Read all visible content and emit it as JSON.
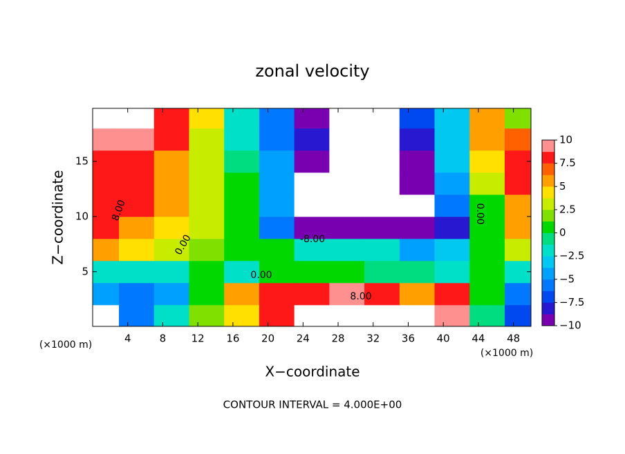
{
  "chart_data": {
    "type": "heatmap",
    "title": "zonal velocity",
    "x_label": "X−coordinate",
    "y_label": "Z−coordinate",
    "x_unit_left": "(×1000 m)",
    "x_unit_right": "(×1000 m)",
    "footnote": "CONTOUR INTERVAL = 4.000E+00",
    "x": [
      1,
      5,
      9,
      13,
      17,
      21,
      25,
      29,
      33,
      37,
      41,
      45,
      49
    ],
    "y": [
      1,
      3,
      5,
      7,
      9,
      11,
      13,
      15,
      17,
      19
    ],
    "z": [
      [
        -11,
        -6,
        -2,
        2,
        4,
        8,
        11,
        12,
        12,
        11,
        10,
        -1,
        -7
      ],
      [
        -5,
        -6,
        -4,
        0,
        6,
        7.5,
        8,
        10,
        8,
        6,
        8,
        1,
        -6
      ],
      [
        -2,
        -2.5,
        -2,
        0,
        -2,
        0.5,
        0,
        0,
        -1,
        -1,
        -2,
        0,
        -2.5
      ],
      [
        5,
        4,
        2.5,
        2,
        1,
        0,
        -1.5,
        -2.5,
        -2.5,
        -5,
        -3,
        0.5,
        3.5
      ],
      [
        8,
        6,
        4,
        2.5,
        0.5,
        -6,
        -9,
        -9,
        -9.5,
        -9,
        -8,
        0,
        5
      ],
      [
        8,
        7.5,
        5,
        3,
        0.5,
        -4,
        -11,
        -12,
        -11,
        -10.5,
        -6,
        1,
        6
      ],
      [
        8,
        8,
        6,
        3.5,
        0,
        -5,
        -11,
        -14,
        -13,
        -10,
        -4,
        3,
        7.5
      ],
      [
        8.5,
        8,
        6,
        3,
        -1,
        -5,
        -9,
        -13,
        -12,
        -9,
        -3,
        4,
        8
      ],
      [
        10,
        10,
        7.5,
        3,
        -2,
        -5.5,
        -8,
        -12,
        -12,
        -8,
        -3,
        5,
        7
      ],
      [
        11,
        12,
        8,
        4,
        -2,
        -6,
        -10,
        -13,
        -11,
        -7,
        -3,
        6,
        2
      ]
    ],
    "xlim": [
      0,
      50
    ],
    "ylim": [
      0.05,
      19.8
    ],
    "xticks": [
      4,
      8,
      12,
      16,
      20,
      24,
      28,
      32,
      36,
      40,
      44,
      48
    ],
    "yticks": [
      5,
      10,
      15
    ],
    "clim": [
      -10,
      10
    ],
    "colors": [
      "#7800b0",
      "#2818d0",
      "#0048f0",
      "#0078ff",
      "#00a0ff",
      "#00c8f0",
      "#00e0c8",
      "#00dc80",
      "#00d800",
      "#80e000",
      "#c8ec00",
      "#ffe000",
      "#ffa000",
      "#ff6000",
      "#ff1818",
      "#ff9090"
    ],
    "out_of_range_color": "#ffffff",
    "cticks": [
      {
        "value": -10,
        "label": "−10"
      },
      {
        "value": -7.5,
        "label": "−7.5"
      },
      {
        "value": -5,
        "label": "−5"
      },
      {
        "value": -2.5,
        "label": "−2.5"
      },
      0,
      2.5,
      5,
      7.5,
      10
    ],
    "contour_labels": [
      "8.00",
      "0.00",
      "0.00",
      "-8.00",
      "8.00",
      "0.00"
    ]
  }
}
